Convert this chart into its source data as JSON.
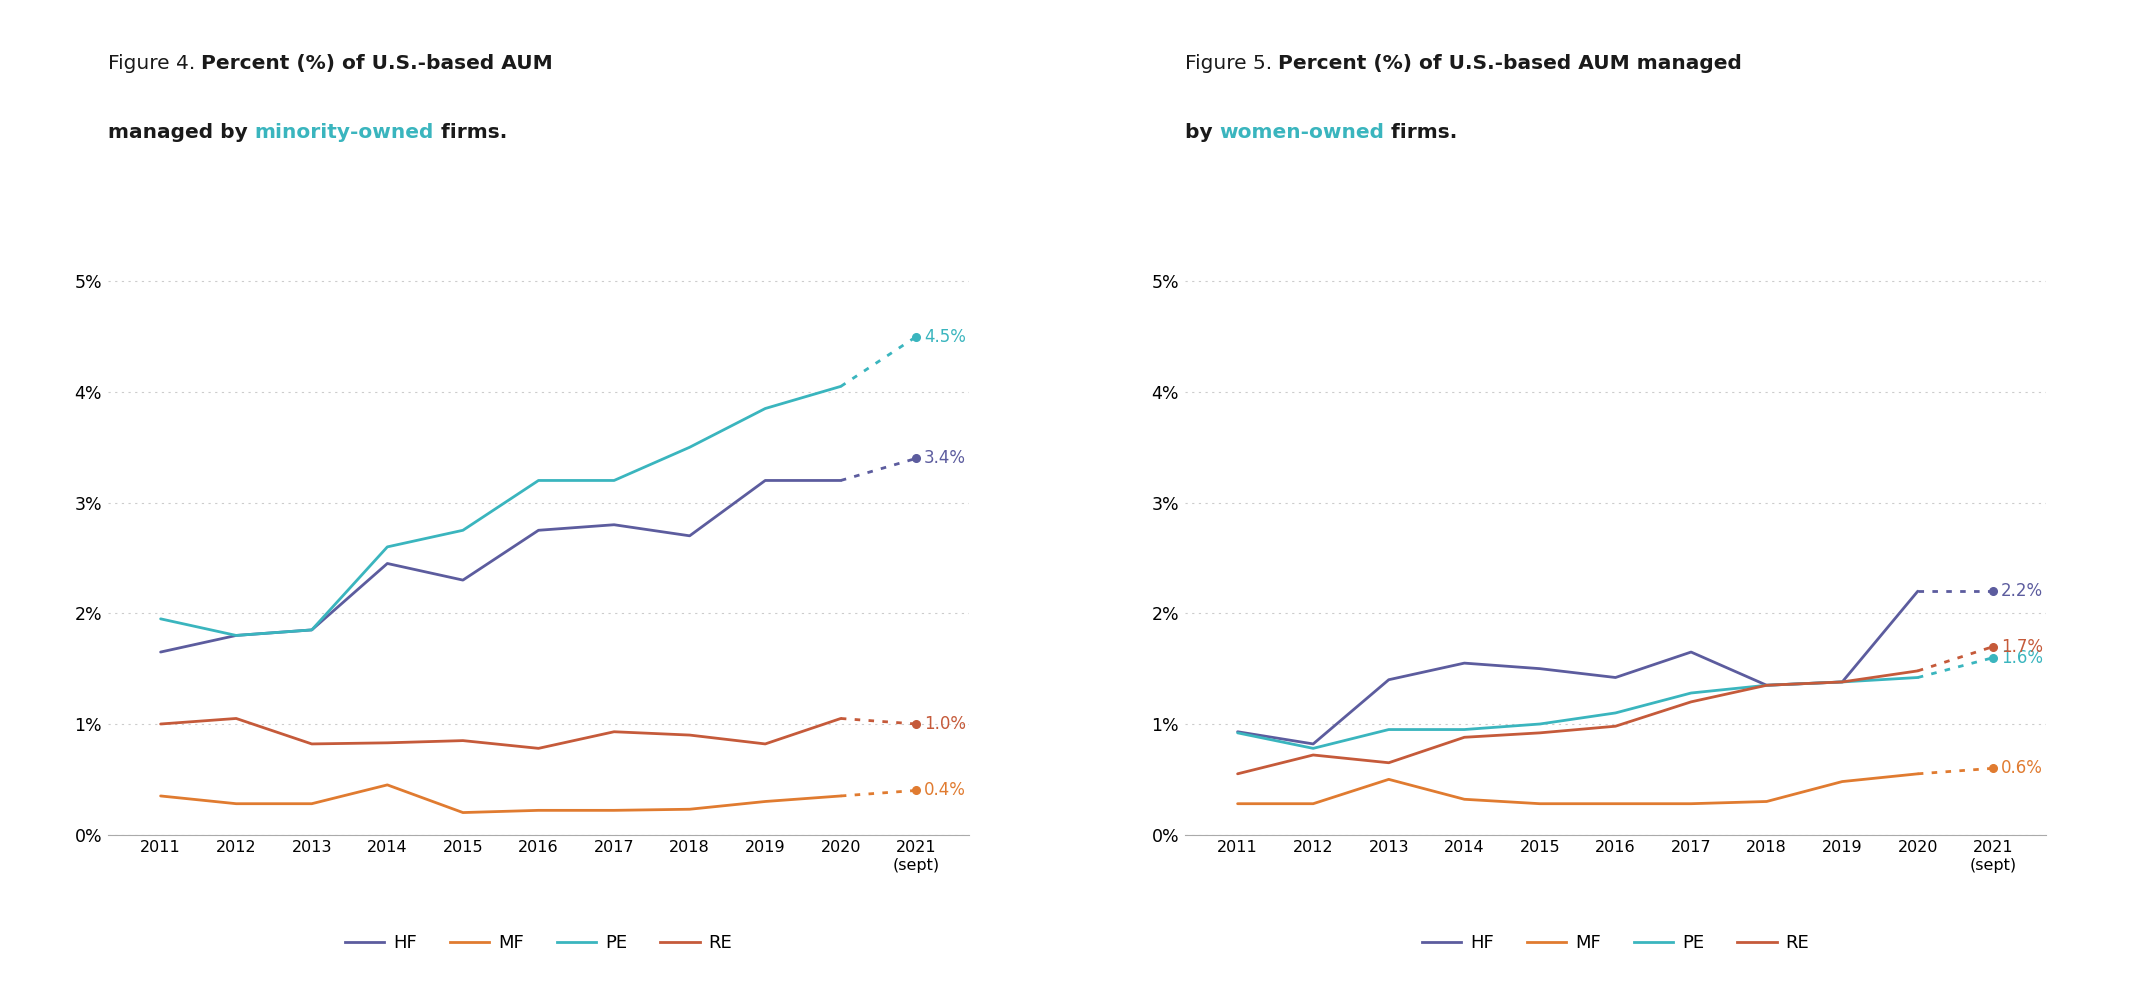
{
  "highlight_color": "#3ab5be",
  "years": [
    2011,
    2012,
    2013,
    2014,
    2015,
    2016,
    2017,
    2018,
    2019,
    2020,
    2021
  ],
  "fig4": {
    "HF": [
      1.65,
      1.8,
      1.85,
      2.45,
      2.3,
      2.75,
      2.8,
      2.7,
      3.2,
      3.2,
      3.4
    ],
    "MF": [
      0.35,
      0.28,
      0.28,
      0.45,
      0.2,
      0.22,
      0.22,
      0.23,
      0.3,
      0.35,
      0.4
    ],
    "PE": [
      1.95,
      1.8,
      1.85,
      2.6,
      2.75,
      3.2,
      3.2,
      3.5,
      3.85,
      4.05,
      4.5
    ],
    "RE": [
      1.0,
      1.05,
      0.82,
      0.83,
      0.85,
      0.78,
      0.93,
      0.9,
      0.82,
      1.05,
      1.0
    ],
    "end_labels": {
      "HF": "3.4%",
      "MF": "0.4%",
      "PE": "4.5%",
      "RE": "1.0%"
    }
  },
  "fig5": {
    "HF": [
      0.93,
      0.82,
      1.4,
      1.55,
      1.5,
      1.42,
      1.65,
      1.35,
      1.38,
      2.2,
      2.2
    ],
    "MF": [
      0.28,
      0.28,
      0.5,
      0.32,
      0.28,
      0.28,
      0.28,
      0.3,
      0.48,
      0.55,
      0.6
    ],
    "PE": [
      0.92,
      0.78,
      0.95,
      0.95,
      1.0,
      1.1,
      1.28,
      1.35,
      1.38,
      1.42,
      1.6
    ],
    "RE": [
      0.55,
      0.72,
      0.65,
      0.88,
      0.92,
      0.98,
      1.2,
      1.35,
      1.38,
      1.48,
      1.7
    ],
    "end_labels": {
      "HF": "2.2%",
      "MF": "0.6%",
      "PE": "1.6%",
      "RE": "1.7%"
    }
  },
  "colors": {
    "HF": "#5c5c9e",
    "MF": "#e07b30",
    "PE": "#3ab5be",
    "RE": "#c55a3a"
  },
  "background_color": "#ffffff",
  "grid_color": "#cccccc",
  "ytick_labels": [
    "0%",
    "1%",
    "2%",
    "3%",
    "4%",
    "5%"
  ]
}
